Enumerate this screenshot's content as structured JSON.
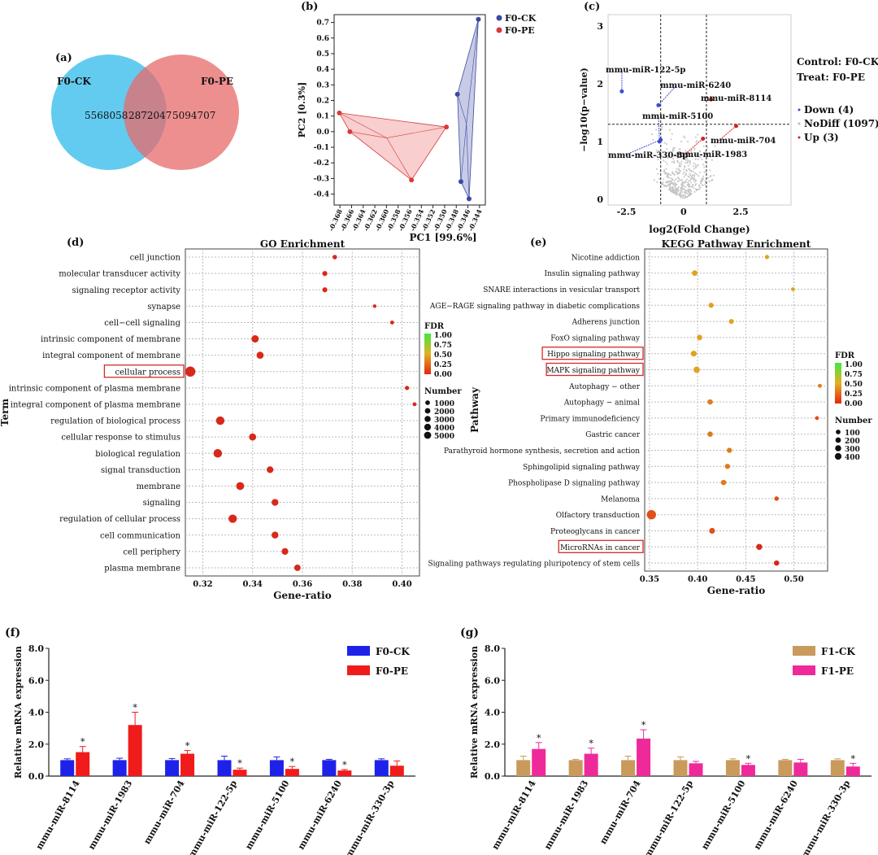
{
  "panels": {
    "a": "(a)",
    "b": "(b)",
    "c": "(c)",
    "d": "(d)",
    "e": "(e)",
    "f": "(f)",
    "g": "(g)"
  },
  "chart_data": [
    {
      "type": "venn",
      "panel": "(a)",
      "sets": [
        {
          "name": "F0-CK",
          "unique": 5568058,
          "color": "#5bc8ee"
        },
        {
          "name": "F0-PE",
          "unique": 5094707,
          "color": "#e86a6a"
        }
      ],
      "intersection": 2872047
    },
    {
      "type": "scatter",
      "panel": "(b)",
      "xlabel": "PC1 [99.6%]",
      "ylabel": "PC2 [0.3%]",
      "xlim": [
        -0.369,
        -0.343
      ],
      "ylim": [
        -0.47,
        0.75
      ],
      "xticks": [
        -0.368,
        -0.366,
        -0.364,
        -0.362,
        -0.36,
        -0.358,
        -0.356,
        -0.354,
        -0.352,
        -0.35,
        -0.348,
        -0.346,
        -0.344
      ],
      "yticks": [
        -0.4,
        -0.3,
        -0.2,
        -0.1,
        0.0,
        0.1,
        0.2,
        0.3,
        0.4,
        0.5,
        0.6,
        0.7
      ],
      "series": [
        {
          "name": "F0-CK",
          "color": "#3a4aa0",
          "fill": "#9aa0d2",
          "points": [
            [
              -0.3442,
              0.72
            ],
            [
              -0.3478,
              0.24
            ],
            [
              -0.3472,
              -0.32
            ],
            [
              -0.3458,
              -0.43
            ]
          ]
        },
        {
          "name": "F0-PE",
          "color": "#d83a3a",
          "fill": "#f2a5a5",
          "points": [
            [
              -0.3681,
              0.12
            ],
            [
              -0.3663,
              0.0
            ],
            [
              -0.3557,
              -0.31
            ],
            [
              -0.3497,
              0.03
            ]
          ]
        }
      ]
    },
    {
      "type": "volcano",
      "panel": "(c)",
      "xlabel": "log2(Fold Change)",
      "ylabel": "−log10(p−value)",
      "xlim": [
        -3.3,
        4.7
      ],
      "ylim": [
        -0.1,
        3.2
      ],
      "xticks": [
        -2.5,
        0,
        2.5
      ],
      "yticks": [
        0,
        1,
        2,
        3
      ],
      "info": [
        "Control: F0-CK",
        "Treat: F0-PE"
      ],
      "legend": [
        "Down (4)",
        "NoDiff (1097)",
        "Up (3)"
      ],
      "legend_colors": [
        "#3a4fcf",
        "#bbbbbb",
        "#d42020"
      ],
      "labels": [
        {
          "text": "mmu-miR-122-5p",
          "x": -2.7,
          "y": 1.87,
          "dir": "down"
        },
        {
          "text": "mmu-miR-6240",
          "x": -1.1,
          "y": 1.63,
          "dir": "down"
        },
        {
          "text": "mmu-miR-5100",
          "x": -1.05,
          "y": 1.0,
          "dir": "down"
        },
        {
          "text": "mmu-miR-330-3p",
          "x": -1.0,
          "y": 1.03,
          "dir": "down"
        },
        {
          "text": "mmu-miR-8114",
          "x": 1.2,
          "y": 1.73,
          "dir": "up"
        },
        {
          "text": "mmu-miR-704",
          "x": 2.3,
          "y": 1.27,
          "dir": "up"
        },
        {
          "text": "mmu-miR-1983",
          "x": 0.85,
          "y": 1.05,
          "dir": "up"
        }
      ],
      "thresholds": {
        "x": [
          -1,
          1
        ],
        "y": 1.3
      }
    },
    {
      "type": "bubble",
      "panel": "(d)",
      "title": "GO Enrichment",
      "xlabel": "Gene-ratio",
      "ylabel": "Term",
      "xlim": [
        0.313,
        0.407
      ],
      "xticks": [
        0.32,
        0.34,
        0.36,
        0.38,
        0.4
      ],
      "fdr_label": "FDR",
      "fdr_ticks": [
        "1.00",
        "0.75",
        "0.50",
        "0.25",
        "0.00"
      ],
      "size_label": "Number",
      "size_ticks": [
        1000,
        2000,
        3000,
        4000,
        5000
      ],
      "highlight": [
        "cellular process"
      ],
      "terms": [
        {
          "term": "cell junction",
          "x": 0.373,
          "n": 500
        },
        {
          "term": "molecular transducer activity",
          "x": 0.369,
          "n": 700
        },
        {
          "term": "signaling receptor activity",
          "x": 0.369,
          "n": 700
        },
        {
          "term": "synapse",
          "x": 0.389,
          "n": 200
        },
        {
          "term": "cell−cell signaling",
          "x": 0.396,
          "n": 300
        },
        {
          "term": "intrinsic component of membrane",
          "x": 0.341,
          "n": 2200
        },
        {
          "term": "integral component of membrane",
          "x": 0.343,
          "n": 2000
        },
        {
          "term": "cellular process",
          "x": 0.315,
          "n": 5000
        },
        {
          "term": "intrinsic component of plasma membrane",
          "x": 0.402,
          "n": 400
        },
        {
          "term": "integral component of plasma membrane",
          "x": 0.405,
          "n": 300
        },
        {
          "term": "regulation of biological process",
          "x": 0.327,
          "n": 3200
        },
        {
          "term": "cellular response to stimulus",
          "x": 0.34,
          "n": 2000
        },
        {
          "term": "biological regulation",
          "x": 0.326,
          "n": 3300
        },
        {
          "term": "signal transduction",
          "x": 0.347,
          "n": 1700
        },
        {
          "term": "membrane",
          "x": 0.335,
          "n": 2700
        },
        {
          "term": "signaling",
          "x": 0.349,
          "n": 1800
        },
        {
          "term": "regulation of cellular process",
          "x": 0.332,
          "n": 3100
        },
        {
          "term": "cell communication",
          "x": 0.349,
          "n": 1800
        },
        {
          "term": "cell periphery",
          "x": 0.353,
          "n": 1700
        },
        {
          "term": "plasma membrane",
          "x": 0.358,
          "n": 1500
        }
      ]
    },
    {
      "type": "bubble",
      "panel": "(e)",
      "title": "KEGG Pathway Enrichment",
      "xlabel": "Gene-ratio",
      "ylabel": "Pathway",
      "xlim": [
        0.345,
        0.535
      ],
      "xticks": [
        0.35,
        0.4,
        0.45,
        0.5
      ],
      "fdr_label": "FDR",
      "fdr_ticks": [
        "1.00",
        "0.75",
        "0.50",
        "0.25",
        "0.00"
      ],
      "size_label": "Number",
      "size_ticks": [
        100,
        200,
        300,
        400
      ],
      "highlight": [
        "Hippo signaling pathway",
        "MAPK signaling pathway",
        "MicroRNAs in cancer"
      ],
      "terms": [
        {
          "term": "Nicotine addiction",
          "x": 0.472,
          "n": 40,
          "fdr": 0.35
        },
        {
          "term": "Insulin signaling pathway",
          "x": 0.397,
          "n": 100,
          "fdr": 0.4
        },
        {
          "term": "SNARE interactions in vesicular transport",
          "x": 0.499,
          "n": 30,
          "fdr": 0.45
        },
        {
          "term": "AGE−RAGE signaling pathway in diabetic complications",
          "x": 0.414,
          "n": 80,
          "fdr": 0.4
        },
        {
          "term": "Adherens junction",
          "x": 0.435,
          "n": 70,
          "fdr": 0.4
        },
        {
          "term": "FoxO signaling pathway",
          "x": 0.402,
          "n": 100,
          "fdr": 0.4
        },
        {
          "term": "Hippo signaling pathway",
          "x": 0.396,
          "n": 120,
          "fdr": 0.35
        },
        {
          "term": "MAPK signaling pathway",
          "x": 0.399,
          "n": 150,
          "fdr": 0.35
        },
        {
          "term": "Autophagy − other",
          "x": 0.527,
          "n": 30,
          "fdr": 0.25
        },
        {
          "term": "Autophagy − animal",
          "x": 0.413,
          "n": 90,
          "fdr": 0.3
        },
        {
          "term": "Primary immunodeficiency",
          "x": 0.524,
          "n": 30,
          "fdr": 0.2
        },
        {
          "term": "Gastric cancer",
          "x": 0.413,
          "n": 90,
          "fdr": 0.3
        },
        {
          "term": "Parathyroid hormone synthesis, secretion and action",
          "x": 0.433,
          "n": 80,
          "fdr": 0.3
        },
        {
          "term": "Sphingolipid signaling pathway",
          "x": 0.431,
          "n": 80,
          "fdr": 0.3
        },
        {
          "term": "Phospholipase D signaling pathway",
          "x": 0.427,
          "n": 90,
          "fdr": 0.25
        },
        {
          "term": "Melanoma",
          "x": 0.482,
          "n": 50,
          "fdr": 0.2
        },
        {
          "term": "Olfactory transduction",
          "x": 0.352,
          "n": 420,
          "fdr": 0.15
        },
        {
          "term": "Proteoglycans in cancer",
          "x": 0.415,
          "n": 120,
          "fdr": 0.15
        },
        {
          "term": "MicroRNAs in cancer",
          "x": 0.464,
          "n": 130,
          "fdr": 0.05
        },
        {
          "term": "Signaling pathways regulating pluripotency of stem cells",
          "x": 0.482,
          "n": 90,
          "fdr": 0.05
        }
      ]
    },
    {
      "type": "bar",
      "panel": "(f)",
      "ylabel": "Relative mRNA expression",
      "ylim": [
        0,
        8.0
      ],
      "yticks": [
        "0.0",
        "2.0",
        "4.0",
        "6.0",
        "8.0"
      ],
      "categories": [
        "mmu-miR-8114",
        "mmu-miR-1983",
        "mmu-miR-704",
        "mmu-miR-122-5p",
        "mmu-miR-5100",
        "mmu-miR-6240",
        "mmu-miR-330-3p"
      ],
      "series": [
        {
          "name": "F0-CK",
          "color": "#1e22e8",
          "values": [
            1.0,
            1.0,
            1.0,
            1.0,
            1.0,
            1.0,
            1.0
          ],
          "err": [
            0.08,
            0.12,
            0.1,
            0.25,
            0.2,
            0.05,
            0.08
          ]
        },
        {
          "name": "F0-PE",
          "color": "#f01c1c",
          "values": [
            1.5,
            3.2,
            1.4,
            0.4,
            0.45,
            0.35,
            0.65
          ],
          "err": [
            0.35,
            0.8,
            0.2,
            0.1,
            0.15,
            0.06,
            0.3
          ]
        }
      ],
      "stars": [
        true,
        true,
        true,
        true,
        true,
        true,
        false
      ]
    },
    {
      "type": "bar",
      "panel": "(g)",
      "ylabel": "Relative mRNA expression",
      "ylim": [
        0,
        8.0
      ],
      "yticks": [
        "0.0",
        "2.0",
        "4.0",
        "6.0",
        "8.0"
      ],
      "categories": [
        "mmu-miR-8114",
        "mmu-miR-1983",
        "mmu-miR-704",
        "mmu-miR-122-5p",
        "mmu-miR-5100",
        "mmu-miR-6240",
        "mmu-miR-330-3p"
      ],
      "series": [
        {
          "name": "F1-CK",
          "color": "#c99a5b",
          "values": [
            1.0,
            1.0,
            1.0,
            1.0,
            1.0,
            1.0,
            1.0
          ],
          "err": [
            0.25,
            0.05,
            0.25,
            0.2,
            0.08,
            0.05,
            0.08
          ]
        },
        {
          "name": "F1-PE",
          "color": "#ee2a9a",
          "values": [
            1.7,
            1.4,
            2.35,
            0.8,
            0.7,
            0.85,
            0.6
          ],
          "err": [
            0.4,
            0.35,
            0.55,
            0.12,
            0.1,
            0.2,
            0.2
          ]
        }
      ],
      "stars": [
        true,
        true,
        true,
        false,
        true,
        false,
        true
      ]
    }
  ]
}
